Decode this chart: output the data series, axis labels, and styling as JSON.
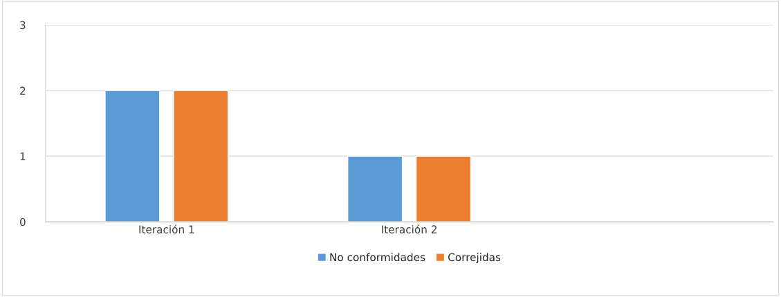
{
  "chart_data": {
    "type": "bar",
    "categories": [
      "Iteración 1",
      "Iteración 2",
      null
    ],
    "series": [
      {
        "name": "No conformidades",
        "color": "#5b9bd5",
        "values": [
          2,
          1,
          null
        ]
      },
      {
        "name": "Correjidas",
        "color": "#ed7d31",
        "values": [
          2,
          1,
          null
        ]
      }
    ],
    "ylim": [
      0,
      3
    ],
    "yticks": [
      0,
      1,
      2,
      3
    ],
    "grid": "y",
    "legend": "bottom"
  }
}
